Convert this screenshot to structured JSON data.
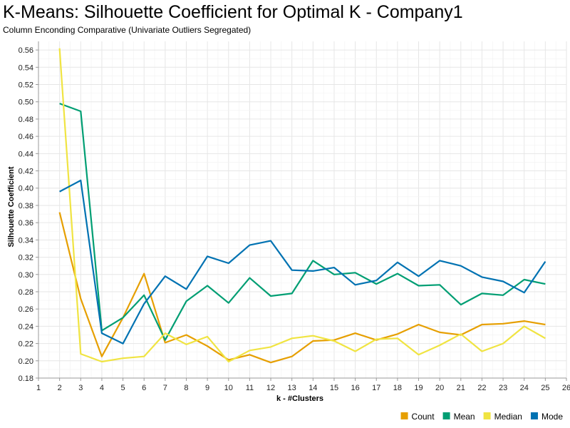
{
  "chart_data": {
    "type": "line",
    "title": "K-Means: Silhouette Coefficient for Optimal K - Company1",
    "subtitle": "Column Enconding Comparative (Univariate Outliers Segregated)",
    "xlabel": "k - #Clusters",
    "ylabel": "Silhouette Coefficient",
    "xlim": [
      1,
      26
    ],
    "ylim": [
      0.18,
      0.57
    ],
    "x_ticks": [
      1,
      2,
      3,
      4,
      5,
      6,
      7,
      8,
      9,
      10,
      11,
      12,
      13,
      14,
      15,
      16,
      17,
      18,
      19,
      20,
      21,
      22,
      23,
      24,
      25,
      26
    ],
    "y_ticks": [
      0.18,
      0.2,
      0.22,
      0.24,
      0.26,
      0.28,
      0.3,
      0.32,
      0.34,
      0.36,
      0.38,
      0.4,
      0.42,
      0.44,
      0.46,
      0.48,
      0.5,
      0.52,
      0.54,
      0.56
    ],
    "grid": true,
    "legend_position": "bottom-right",
    "x": [
      2,
      3,
      4,
      5,
      6,
      7,
      8,
      9,
      10,
      11,
      12,
      13,
      14,
      15,
      16,
      17,
      18,
      19,
      20,
      21,
      22,
      23,
      24,
      25
    ],
    "series": [
      {
        "name": "Count",
        "color": "#E69F00",
        "values": [
          0.372,
          0.272,
          0.205,
          0.25,
          0.301,
          0.221,
          0.23,
          0.217,
          0.201,
          0.207,
          0.198,
          0.205,
          0.223,
          0.224,
          0.232,
          0.224,
          0.231,
          0.242,
          0.233,
          0.23,
          0.242,
          0.243,
          0.246,
          0.242
        ]
      },
      {
        "name": "Mean",
        "color": "#009E73",
        "values": [
          0.498,
          0.489,
          0.235,
          0.25,
          0.276,
          0.224,
          0.269,
          0.287,
          0.267,
          0.296,
          0.275,
          0.278,
          0.316,
          0.3,
          0.302,
          0.289,
          0.301,
          0.287,
          0.288,
          0.265,
          0.278,
          0.276,
          0.294,
          0.289
        ]
      },
      {
        "name": "Median",
        "color": "#F0E442",
        "values": [
          0.562,
          0.208,
          0.199,
          0.203,
          0.205,
          0.232,
          0.219,
          0.228,
          0.199,
          0.212,
          0.216,
          0.226,
          0.229,
          0.223,
          0.211,
          0.225,
          0.226,
          0.207,
          0.218,
          0.231,
          0.211,
          0.22,
          0.24,
          0.226
        ]
      },
      {
        "name": "Mode",
        "color": "#0072B2",
        "values": [
          0.396,
          0.409,
          0.232,
          0.22,
          0.266,
          0.298,
          0.283,
          0.321,
          0.313,
          0.334,
          0.339,
          0.305,
          0.304,
          0.308,
          0.288,
          0.293,
          0.314,
          0.298,
          0.316,
          0.31,
          0.297,
          0.292,
          0.279,
          0.315
        ]
      }
    ]
  }
}
